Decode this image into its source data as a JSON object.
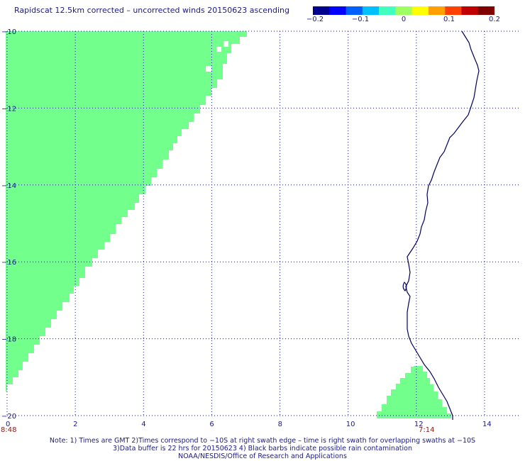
{
  "title": "Rapidscat 12.5km corrected – uncorrected winds 20150623 ascending",
  "colorbar": {
    "colors": [
      "#00008f",
      "#0000ff",
      "#0060ff",
      "#00c0ff",
      "#40ffbf",
      "#a0ff60",
      "#ffff00",
      "#ffa000",
      "#ff4000",
      "#c00000",
      "#800000"
    ],
    "tick_labels": [
      "−0.2",
      "−0.1",
      "0",
      "0.1",
      "0.2"
    ]
  },
  "map": {
    "x_range": [
      0,
      14
    ],
    "y_range": [
      -20,
      -10
    ],
    "x_tick_labels": [
      "0",
      "2",
      "4",
      "6",
      "8",
      "10",
      "12",
      "14"
    ],
    "y_tick_labels": [
      "−10",
      "−12",
      "−14",
      "−16",
      "−18",
      "−20"
    ],
    "swath_times": [
      "8:48",
      "7:14"
    ],
    "swath_color": "#73ff8c",
    "coast_color": "#000066",
    "grid": true
  },
  "notes": [
    "Note: 1) Times are GMT 2)Times correspond to −10S at right swath edge – time is right swath for overlapping swaths at −10S",
    "3)Data buffer is 22 hrs for 20150623 4) Black barbs indicate possible rain contamination",
    "NOAA/NESDIS/Office of Research and Applications"
  ]
}
